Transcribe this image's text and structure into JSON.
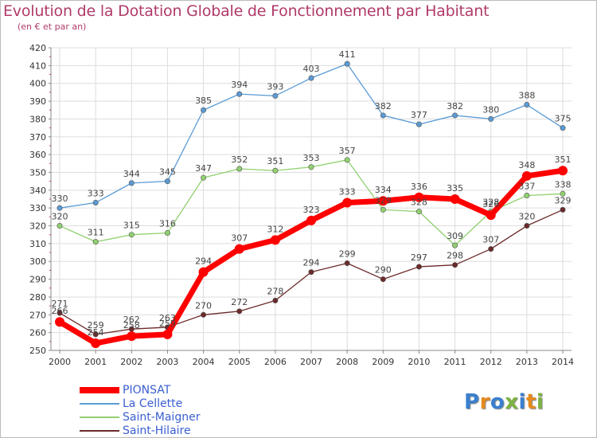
{
  "title": "Evolution de la Dotation Globale de Fonctionnement par Habitant",
  "subtitle": "(en € et par an)",
  "logo": {
    "text": "Proxiti",
    "letters": [
      {
        "ch": "P",
        "color": "#3a7fd0"
      },
      {
        "ch": "r",
        "color": "#e58a1f"
      },
      {
        "ch": "o",
        "color": "#3a7fd0"
      },
      {
        "ch": "x",
        "color": "#7cb342"
      },
      {
        "ch": "i",
        "color": "#3a7fd0"
      },
      {
        "ch": "t",
        "color": "#e58a1f"
      },
      {
        "ch": "i",
        "color": "#7cb342"
      }
    ]
  },
  "chart_data": {
    "type": "line",
    "title": "Evolution de la Dotation Globale de Fonctionnement par Habitant",
    "subtitle": "(en € et par an)",
    "x": [
      "2000",
      "2001",
      "2002",
      "2003",
      "2004",
      "2005",
      "2006",
      "2007",
      "2008",
      "2009",
      "2010",
      "2011",
      "2012",
      "2013",
      "2014"
    ],
    "ylim": [
      250,
      420
    ],
    "yticks": [
      250,
      260,
      270,
      280,
      290,
      300,
      310,
      320,
      330,
      340,
      350,
      360,
      370,
      380,
      390,
      400,
      410,
      420
    ],
    "grid": true,
    "legend_position": "bottom-left",
    "series": [
      {
        "name": "PIONSAT",
        "color": "#ff0000",
        "values": [
          266,
          254,
          258,
          259,
          294,
          307,
          312,
          323,
          333,
          334,
          336,
          335,
          326,
          348,
          351
        ]
      },
      {
        "name": "La Cellette",
        "color": "#5b9bd5",
        "values": [
          330,
          333,
          344,
          345,
          385,
          394,
          393,
          403,
          411,
          382,
          377,
          382,
          380,
          388,
          375
        ]
      },
      {
        "name": "Saint-Maigner",
        "color": "#90d070",
        "values": [
          320,
          311,
          315,
          316,
          347,
          352,
          351,
          353,
          357,
          329,
          328,
          309,
          328,
          337,
          338
        ]
      },
      {
        "name": "Saint-Hilaire",
        "color": "#6b2a2a",
        "values": [
          271,
          259,
          262,
          263,
          270,
          272,
          278,
          294,
          299,
          290,
          297,
          298,
          307,
          320,
          329
        ]
      }
    ]
  }
}
